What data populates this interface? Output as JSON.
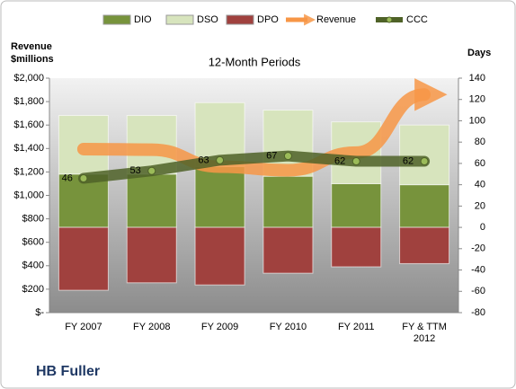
{
  "chart_data": {
    "type": "bar",
    "title": "12-Month Periods",
    "ylabel": [
      "Revenue",
      "$millions"
    ],
    "y2label": "Days",
    "footer": "HB Fuller",
    "categories": [
      "FY 2007",
      "FY 2008",
      "FY 2009",
      "FY 2010",
      "FY 2011",
      "FY & TTM 2012"
    ],
    "ylim": [
      0,
      2000
    ],
    "yticks": [
      {
        "value": 0,
        "label": "$-"
      },
      {
        "value": 200,
        "label": "$200"
      },
      {
        "value": 400,
        "label": "$400"
      },
      {
        "value": 600,
        "label": "$600"
      },
      {
        "value": 800,
        "label": "$800"
      },
      {
        "value": 1000,
        "label": "$1,000"
      },
      {
        "value": 1200,
        "label": "$1,200"
      },
      {
        "value": 1400,
        "label": "$1,400"
      },
      {
        "value": 1600,
        "label": "$1,600"
      },
      {
        "value": 1800,
        "label": "$1,800"
      },
      {
        "value": 2000,
        "label": "$2,000"
      }
    ],
    "y2lim": [
      -80,
      140
    ],
    "y2ticks": [
      -80,
      -60,
      -40,
      -20,
      0,
      20,
      40,
      60,
      80,
      100,
      120,
      140
    ],
    "series": [
      {
        "name": "DIO",
        "type": "bar",
        "axis": "y2",
        "color": "#77933c",
        "values": [
          50,
          50,
          57,
          48,
          41,
          40
        ]
      },
      {
        "name": "DSO",
        "type": "bar",
        "axis": "y2",
        "color": "#d7e4bd",
        "values": [
          55,
          55,
          60,
          62,
          58,
          56
        ]
      },
      {
        "name": "DPO",
        "type": "bar",
        "axis": "y2",
        "color": "#a0413e",
        "values": [
          -59,
          -52,
          -54,
          -43,
          -37,
          -34
        ]
      },
      {
        "name": "Revenue",
        "type": "arrow",
        "axis": "y",
        "color": "#f79646",
        "values": [
          1395,
          1390,
          1245,
          1215,
          1365,
          1860
        ]
      },
      {
        "name": "CCC",
        "type": "line",
        "axis": "y2",
        "color": "#4f6228",
        "values": [
          46,
          53,
          63,
          67,
          62,
          62
        ]
      }
    ]
  }
}
